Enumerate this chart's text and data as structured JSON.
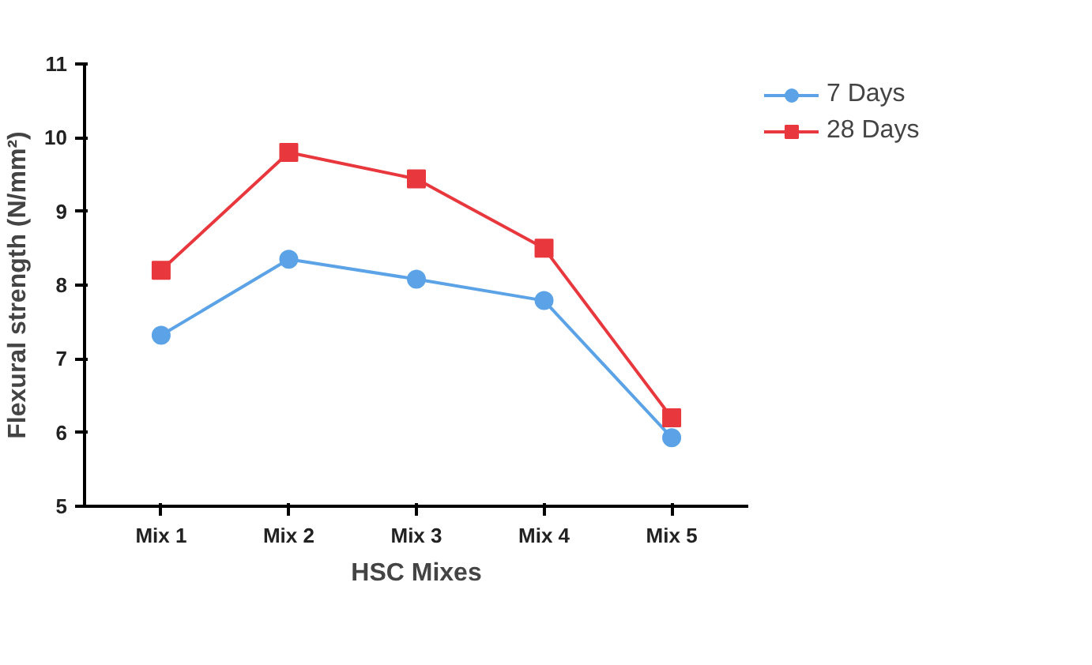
{
  "chart_data": {
    "type": "line",
    "xlabel": "HSC Mixes",
    "ylabel": "Flexural strength (N/mm²)",
    "categories": [
      "Mix 1",
      "Mix 2",
      "Mix 3",
      "Mix 4",
      "Mix 5"
    ],
    "series": [
      {
        "name": "7 Days",
        "color": "#5ba3e6",
        "marker": "circle",
        "values": [
          7.32,
          8.35,
          8.08,
          7.79,
          5.93
        ]
      },
      {
        "name": "28 Days",
        "color": "#e8383d",
        "marker": "square",
        "values": [
          8.2,
          9.8,
          9.44,
          8.5,
          6.2
        ]
      }
    ],
    "ylim": [
      5,
      11
    ],
    "yticks": [
      5,
      6,
      7,
      8,
      9,
      10,
      11
    ],
    "grid": false,
    "legend": "top right",
    "line_style": "solid"
  }
}
